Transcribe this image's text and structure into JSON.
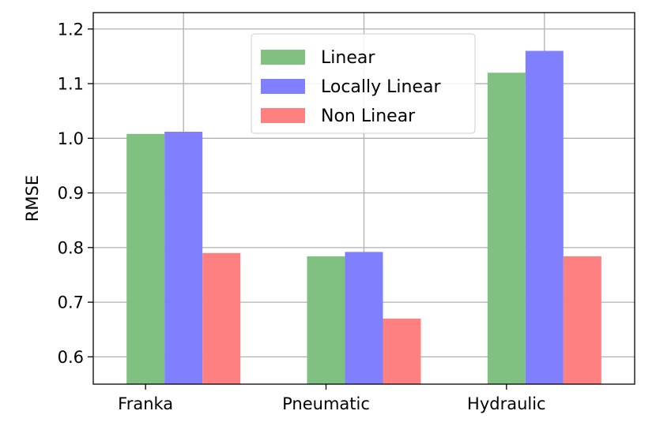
{
  "chart_data": {
    "type": "bar",
    "categories": [
      "Franka",
      "Pneumatic",
      "Hydraulic"
    ],
    "series": [
      {
        "name": "Linear",
        "color": "#80c080",
        "values": [
          1.008,
          0.784,
          1.12
        ]
      },
      {
        "name": "Locally Linear",
        "color": "#8080ff",
        "values": [
          1.012,
          0.792,
          1.16
        ]
      },
      {
        "name": "Non Linear",
        "color": "#ff8080",
        "values": [
          0.79,
          0.67,
          0.784
        ]
      }
    ],
    "title": "",
    "xlabel": "",
    "ylabel": "RMSE",
    "ylim": [
      0.55,
      1.23
    ],
    "yticks": [
      "0.6",
      "0.7",
      "0.8",
      "0.9",
      "1.0",
      "1.1",
      "1.2"
    ],
    "grid": true,
    "legend_position": "top-center"
  }
}
